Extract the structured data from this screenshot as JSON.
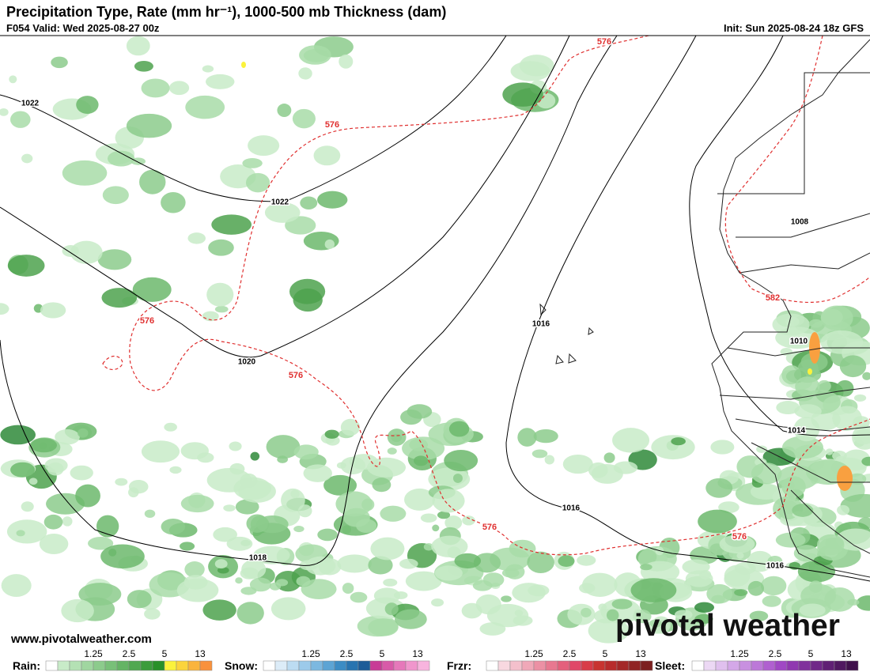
{
  "header": {
    "title": "Precipitation Type, Rate (mm hr⁻¹), 1000-500 mb Thickness (dam)",
    "valid": "F054 Valid: Wed 2025-08-27 00z",
    "init": "Init: Sun 2025-08-24 18z GFS"
  },
  "map": {
    "isobar_labels": [
      1022,
      1022,
      1020,
      1018,
      1016,
      1016,
      1016,
      1014,
      1010,
      1008
    ],
    "thickness_labels": [
      576,
      576,
      576,
      576,
      576,
      576,
      582
    ]
  },
  "branding": {
    "logo": "pivotal weather",
    "url": "www.pivotalweather.com"
  },
  "legend": [
    {
      "label": "Rain:",
      "ticks": [
        1.25,
        2.5,
        5,
        13
      ],
      "colors": [
        "#ffffff",
        "#c8ebc8",
        "#b4e1b4",
        "#a0d6a0",
        "#8ccb8c",
        "#78c078",
        "#64b464",
        "#50a850",
        "#3c9c3c",
        "#289028",
        "#fbf23c",
        "#fbd43c",
        "#fab43c",
        "#f9913c"
      ]
    },
    {
      "label": "Snow:",
      "ticks": [
        1.25,
        2.5,
        5,
        13
      ],
      "colors": [
        "#ffffff",
        "#dcecf8",
        "#bcdcf2",
        "#9ccaea",
        "#7cb8e0",
        "#5ca4d4",
        "#3c8cc4",
        "#2874b0",
        "#1c5c98",
        "#c83c96",
        "#d85aa8",
        "#e678ba",
        "#f096cc",
        "#f8b4de"
      ]
    },
    {
      "label": "Frzr:",
      "ticks": [
        1.25,
        2.5,
        5,
        13
      ],
      "colors": [
        "#ffffff",
        "#f8d8e0",
        "#f4c0cc",
        "#f0a8b8",
        "#ec90a4",
        "#e87890",
        "#e4607c",
        "#e04868",
        "#d83c48",
        "#c83430",
        "#b82c2c",
        "#a42828",
        "#902424",
        "#7c2020"
      ]
    },
    {
      "label": "Sleet:",
      "ticks": [
        1.25,
        2.5,
        5,
        13
      ],
      "colors": [
        "#ffffff",
        "#ecd8f4",
        "#e0c0ee",
        "#d4a8e8",
        "#c890e0",
        "#bc78d8",
        "#b060d0",
        "#a048c4",
        "#9038b0",
        "#80309c",
        "#702888",
        "#602074",
        "#501860",
        "#40104c"
      ]
    }
  ]
}
